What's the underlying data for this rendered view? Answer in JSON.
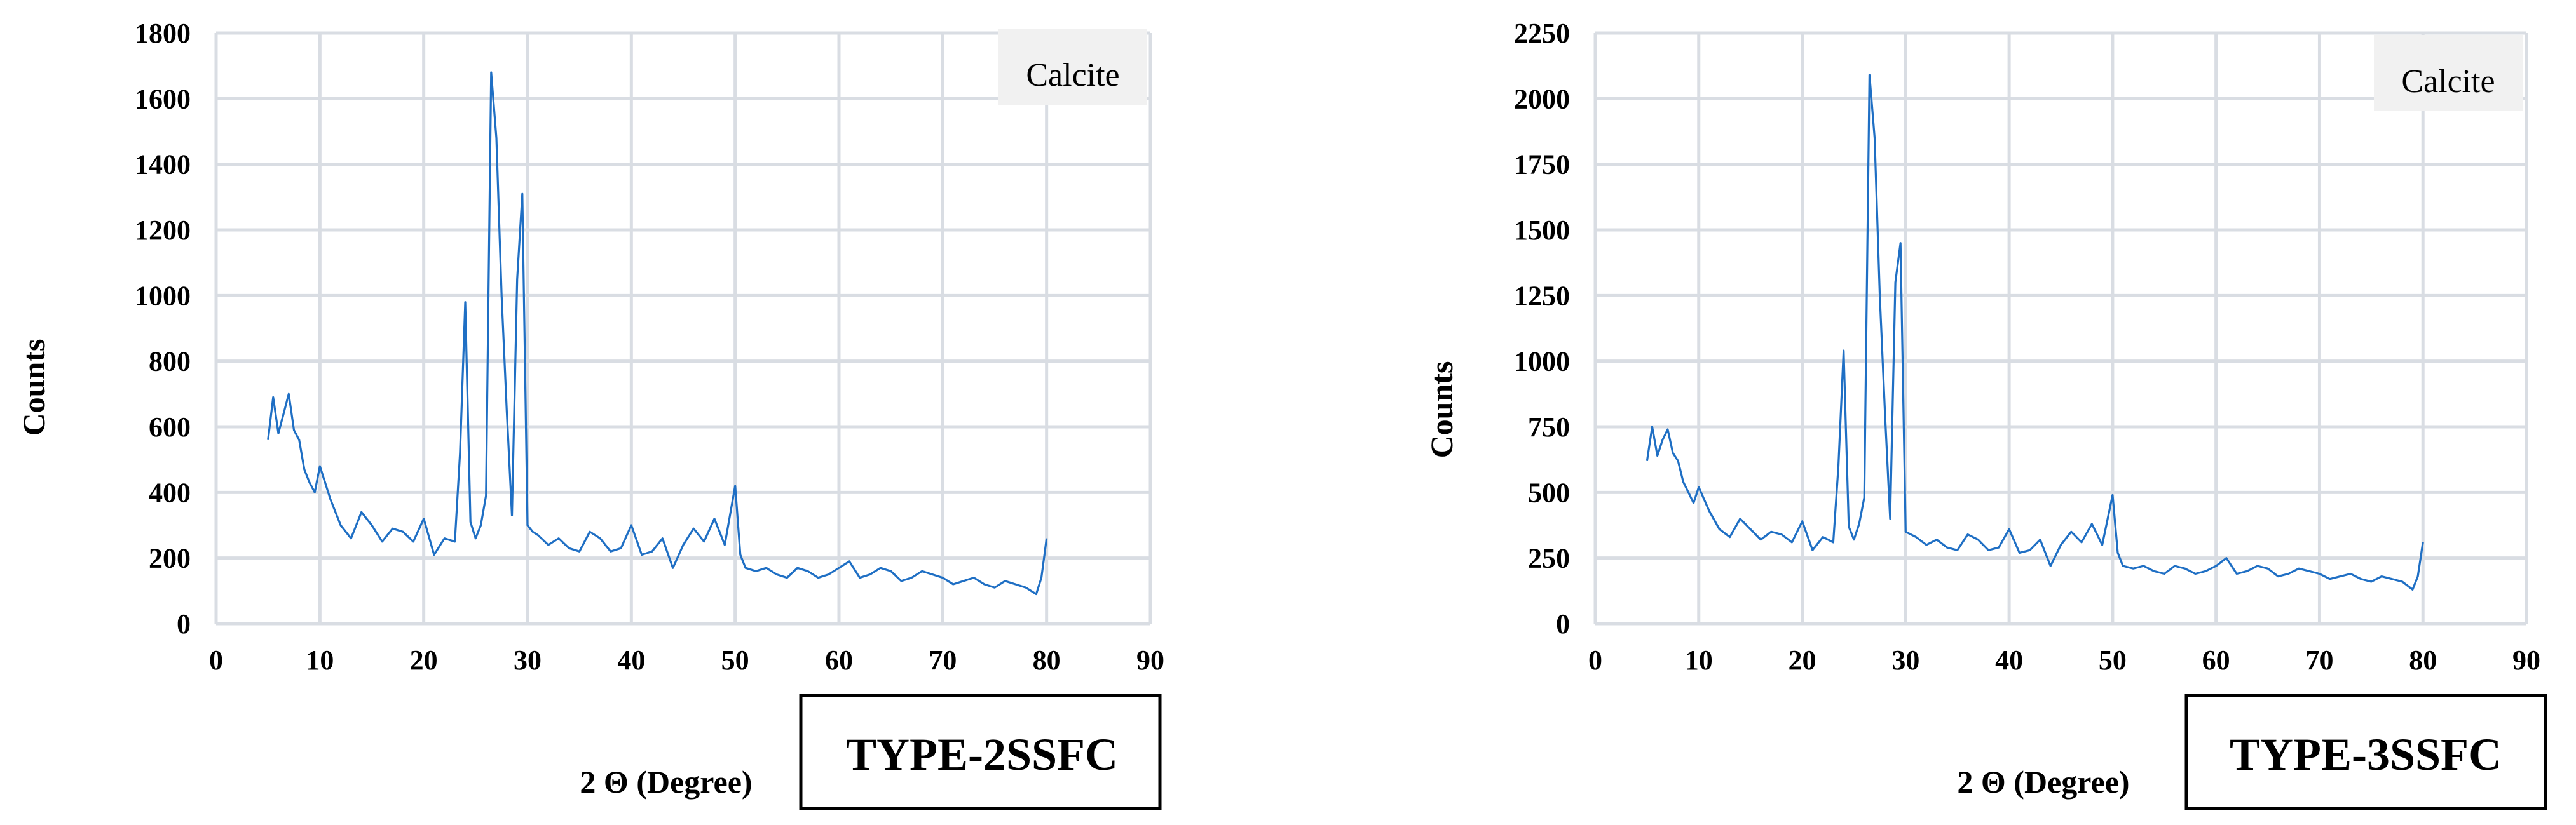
{
  "chart_data": [
    {
      "type": "line",
      "title": "",
      "xlabel": "2 Θ (Degree)",
      "ylabel": "Counts",
      "xlim": [
        0,
        90
      ],
      "ylim": [
        0,
        1800
      ],
      "x_ticks": [
        "0",
        "10",
        "20",
        "30",
        "40",
        "50",
        "60",
        "70",
        "80",
        "90"
      ],
      "y_ticks": [
        "0",
        "200",
        "400",
        "600",
        "800",
        "1000",
        "1200",
        "1400",
        "1600",
        "1800"
      ],
      "grid": true,
      "annotation": "Calcite",
      "sample_label": "TYPE-2SSFC",
      "series": [
        {
          "color": "#1f6fc4",
          "x": [
            5,
            5.5,
            6,
            6.5,
            7,
            7.5,
            8,
            8.5,
            9,
            9.5,
            10,
            11,
            12,
            13,
            14,
            15,
            16,
            17,
            18,
            19,
            20,
            21,
            22,
            23,
            23.5,
            24,
            24.5,
            25,
            25.5,
            26,
            26.5,
            27,
            27.5,
            28,
            28.5,
            29,
            29.5,
            30,
            30.5,
            31,
            32,
            33,
            34,
            35,
            36,
            37,
            38,
            39,
            40,
            41,
            42,
            43,
            44,
            45,
            46,
            47,
            48,
            49,
            50,
            50.5,
            51,
            52,
            53,
            54,
            55,
            56,
            57,
            58,
            59,
            60,
            61,
            62,
            63,
            64,
            65,
            66,
            67,
            68,
            69,
            70,
            71,
            72,
            73,
            74,
            75,
            76,
            77,
            78,
            79,
            79.5,
            80
          ],
          "y": [
            560,
            690,
            580,
            640,
            700,
            590,
            560,
            470,
            430,
            400,
            480,
            380,
            300,
            260,
            340,
            300,
            250,
            290,
            280,
            250,
            320,
            210,
            260,
            250,
            520,
            980,
            310,
            260,
            300,
            390,
            1680,
            1480,
            1000,
            650,
            330,
            1050,
            1310,
            300,
            280,
            270,
            240,
            260,
            230,
            220,
            280,
            260,
            220,
            230,
            300,
            210,
            220,
            260,
            170,
            240,
            290,
            250,
            320,
            240,
            420,
            210,
            170,
            160,
            170,
            150,
            140,
            170,
            160,
            140,
            150,
            170,
            190,
            140,
            150,
            170,
            160,
            130,
            140,
            160,
            150,
            140,
            120,
            130,
            140,
            120,
            110,
            130,
            120,
            110,
            90,
            140,
            260
          ]
        }
      ]
    },
    {
      "type": "line",
      "title": "",
      "xlabel": "2 Θ (Degree)",
      "ylabel": "Counts",
      "xlim": [
        0,
        90
      ],
      "ylim": [
        0,
        2250
      ],
      "x_ticks": [
        "0",
        "10",
        "20",
        "30",
        "40",
        "50",
        "60",
        "70",
        "80",
        "90"
      ],
      "y_ticks": [
        "0",
        "250",
        "500",
        "750",
        "1000",
        "1250",
        "1500",
        "1750",
        "2000",
        "2250"
      ],
      "grid": true,
      "annotation": "Calcite",
      "sample_label": "TYPE-3SSFC",
      "series": [
        {
          "color": "#1f6fc4",
          "x": [
            5,
            5.5,
            6,
            6.5,
            7,
            7.5,
            8,
            8.5,
            9,
            9.5,
            10,
            11,
            12,
            13,
            14,
            15,
            16,
            17,
            18,
            19,
            20,
            21,
            22,
            23,
            23.5,
            24,
            24.5,
            25,
            25.5,
            26,
            26.5,
            27,
            27.5,
            28,
            28.5,
            29,
            29.5,
            30,
            30.5,
            31,
            32,
            33,
            34,
            35,
            36,
            37,
            38,
            39,
            40,
            41,
            42,
            43,
            44,
            45,
            46,
            47,
            48,
            49,
            50,
            50.5,
            51,
            52,
            53,
            54,
            55,
            56,
            57,
            58,
            59,
            60,
            61,
            62,
            63,
            64,
            65,
            66,
            67,
            68,
            69,
            70,
            71,
            72,
            73,
            74,
            75,
            76,
            77,
            78,
            79,
            79.5,
            80
          ],
          "y": [
            620,
            750,
            640,
            700,
            740,
            650,
            620,
            540,
            500,
            460,
            520,
            430,
            360,
            330,
            400,
            360,
            320,
            350,
            340,
            310,
            390,
            280,
            330,
            310,
            600,
            1040,
            370,
            320,
            380,
            480,
            2090,
            1850,
            1250,
            800,
            400,
            1300,
            1450,
            350,
            340,
            330,
            300,
            320,
            290,
            280,
            340,
            320,
            280,
            290,
            360,
            270,
            280,
            320,
            220,
            300,
            350,
            310,
            380,
            300,
            490,
            270,
            220,
            210,
            220,
            200,
            190,
            220,
            210,
            190,
            200,
            220,
            250,
            190,
            200,
            220,
            210,
            180,
            190,
            210,
            200,
            190,
            170,
            180,
            190,
            170,
            160,
            180,
            170,
            160,
            130,
            180,
            310
          ]
        }
      ]
    }
  ]
}
